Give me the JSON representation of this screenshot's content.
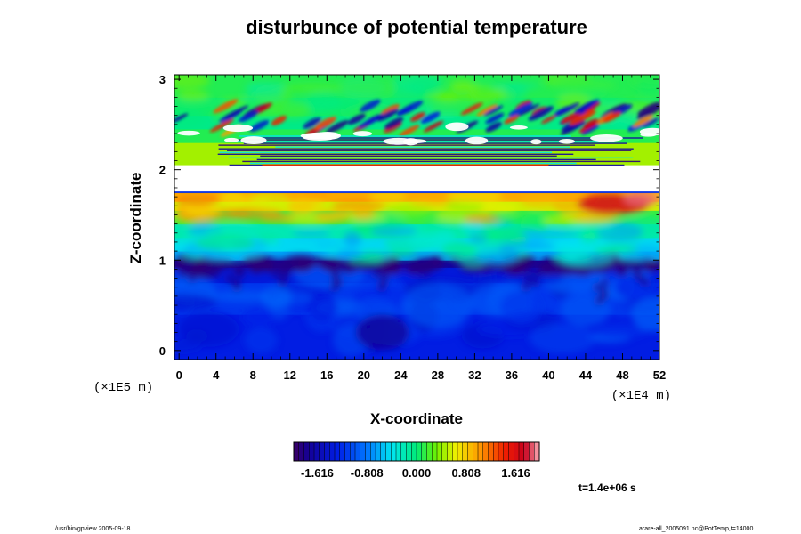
{
  "chart_data": {
    "type": "heatmap",
    "title": "disturbunce of potential temperature",
    "xlabel": "X-coordinate",
    "ylabel": "Z-coordinate",
    "x_unit": "(×1E4 m)",
    "y_unit": "(×1E5 m)",
    "xlim": [
      -0.5,
      52
    ],
    "ylim": [
      -0.1,
      3.05
    ],
    "x_ticks": [
      "0",
      "4",
      "8",
      "12",
      "16",
      "20",
      "24",
      "28",
      "32",
      "36",
      "40",
      "44",
      "48",
      "52"
    ],
    "y_ticks": [
      "0",
      "1",
      "2",
      "3"
    ],
    "colorbar": {
      "range": [
        -2.0,
        2.0
      ],
      "ticks": [
        "-1.616",
        "-0.808",
        "0.000",
        "0.808",
        "1.616"
      ],
      "tick_values": [
        -1.616,
        -0.808,
        0.0,
        0.808,
        1.616
      ]
    },
    "time_label": "t=1.4e+06 s",
    "features": [
      {
        "region": "z 0 to 0.9",
        "value_approx": -1.2,
        "desc": "blue lower layer"
      },
      {
        "region": "z ~0.95",
        "value_approx": -1.8,
        "desc": "dark blue eddy band"
      },
      {
        "region": "z 1.0 to 1.45",
        "value_approx": -0.3,
        "desc": "cyan to green"
      },
      {
        "region": "z 1.45 to 1.75",
        "value_approx": 0.9,
        "desc": "yellow, red near x 44-52"
      },
      {
        "region": "z 1.75 to 2.05",
        "value_approx": null,
        "desc": "undefined (white) band"
      },
      {
        "region": "z 2.05 to 3.05",
        "value_approx": 0.2,
        "desc": "green upper layer with wave streaks"
      }
    ]
  },
  "footer": {
    "left": "/usr/bin/gpview 2005-09-18",
    "right": "arare-all_2005091.nc@PotTemp,t=14000"
  }
}
